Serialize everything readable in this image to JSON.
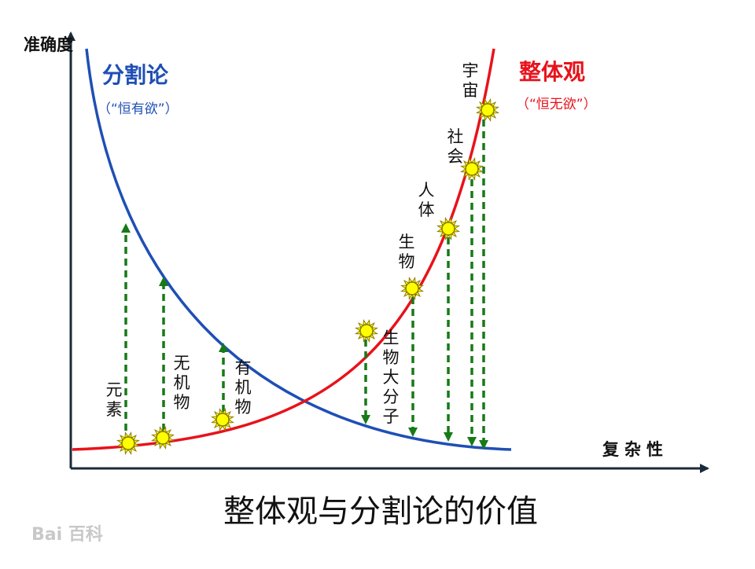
{
  "axis": {
    "y_label": "准确度",
    "x_label": "复杂性"
  },
  "left_curve": {
    "title": "分割论",
    "subtitle": "（“恒有欲”）",
    "color": "#1f4fb5"
  },
  "right_curve": {
    "title": "整体观",
    "subtitle": "（“恒无欲”）",
    "color": "#e8121b"
  },
  "labels": {
    "element": "元素",
    "inorganic": "无机物",
    "organic": "有机物",
    "biomolecule": "生物大分子",
    "organism": "生物",
    "human": "人体",
    "society": "社会",
    "universe": "宇宙"
  },
  "caption": "整体观与分割论的价值",
  "watermark": "Bai 百科",
  "colors": {
    "arrow": "#177a17",
    "sun_fill": "#ffff00",
    "sun_stroke": "#8a7a00",
    "axis": "#1b2a3a"
  }
}
